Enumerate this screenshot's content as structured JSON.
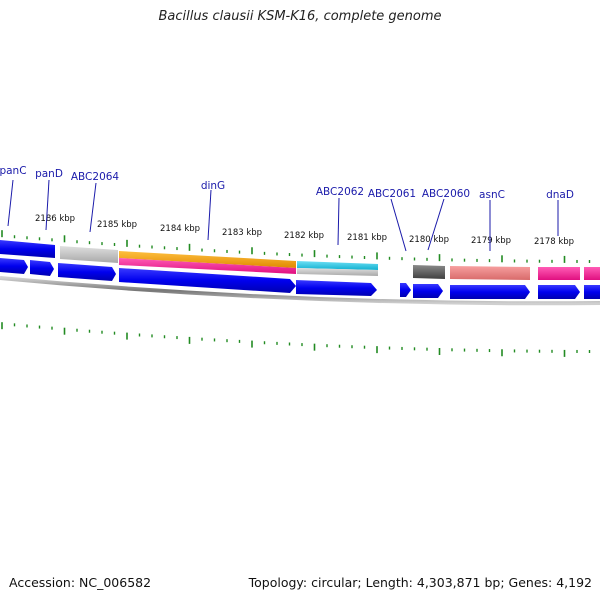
{
  "header": {
    "title": "Bacillus clausii KSM-K16, complete genome"
  },
  "footer": {
    "accession": "Accession: NC_006582",
    "topology": "Topology: circular; Length: 4,303,871 bp; Genes: 4,192"
  },
  "ruler": {
    "kbp_labels": [
      "2186 kbp",
      "2185 kbp",
      "2184 kbp",
      "2183 kbp",
      "2182 kbp",
      "2181 kbp",
      "2180 kbp",
      "2179 kbp",
      "2178 kbp"
    ]
  },
  "genes": [
    {
      "name": "panC"
    },
    {
      "name": "panD"
    },
    {
      "name": "ABC2064"
    },
    {
      "name": "dinG"
    },
    {
      "name": "ABC2062"
    },
    {
      "name": "ABC2061"
    },
    {
      "name": "ABC2060"
    },
    {
      "name": "asnC"
    },
    {
      "name": "dnaD"
    }
  ],
  "colors": {
    "cds_blue": "#0000ee",
    "backbone_gray": "#888888",
    "tick_green": "#228b22",
    "label_blue": "#1a1aaa",
    "orange": "#f5a000",
    "magenta": "#ff1493",
    "cyan": "#1ec8e6",
    "salmon": "#f08080",
    "light_gray": "#c8c8c8",
    "dark_gray": "#606060"
  }
}
